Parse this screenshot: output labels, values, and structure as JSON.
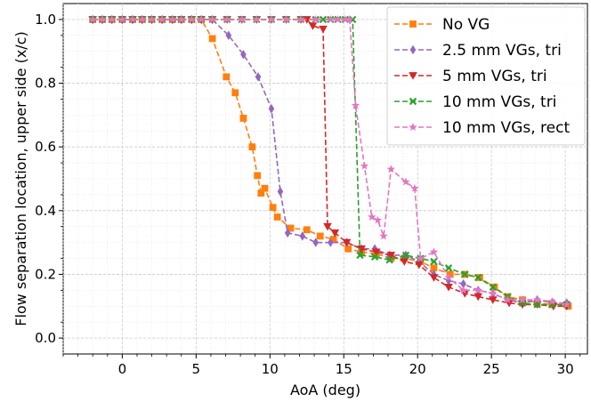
{
  "chart_data": {
    "type": "line",
    "xlabel": "AoA (deg)",
    "ylabel": "Flow separation location, upper side (x/c)",
    "xlim": [
      -4,
      31.5
    ],
    "ylim": [
      -0.05,
      1.05
    ],
    "xticks": [
      0,
      5,
      10,
      15,
      20,
      25,
      30
    ],
    "xtick_labels": [
      "0",
      "5",
      "10",
      "15",
      "20",
      "25",
      "30"
    ],
    "yticks": [
      0.0,
      0.2,
      0.4,
      0.6,
      0.8,
      1.0
    ],
    "ytick_labels": [
      "0.0",
      "0.2",
      "0.4",
      "0.6",
      "0.8",
      "1.0"
    ],
    "grid": true,
    "legend_position": "top-right",
    "series": [
      {
        "name": "No VG",
        "color": "#ff7f0e",
        "marker": "square",
        "x": [
          -2,
          -1.35,
          -0.7,
          0,
          0.7,
          1.35,
          2,
          2.7,
          3.4,
          4,
          4.7,
          5.35,
          6.1,
          7.05,
          7.65,
          8.2,
          8.8,
          9.15,
          9.4,
          9.65,
          10.2,
          10.5,
          11.4,
          12.5,
          13.4,
          14.3,
          15.3,
          16.2,
          17.2,
          18.2,
          19.1,
          20.2,
          21.1,
          22.2,
          23.2,
          24.2,
          25.2,
          26.1,
          27.1,
          28.1,
          29.1,
          30.2
        ],
        "y": [
          1.0,
          1.0,
          1.0,
          1.0,
          1.0,
          1.0,
          1.0,
          1.0,
          1.0,
          1.0,
          1.0,
          1.0,
          0.94,
          0.82,
          0.77,
          0.69,
          0.6,
          0.51,
          0.455,
          0.47,
          0.41,
          0.38,
          0.345,
          0.34,
          0.32,
          0.31,
          0.28,
          0.27,
          0.265,
          0.25,
          0.25,
          0.24,
          0.22,
          0.2,
          0.2,
          0.19,
          0.16,
          0.13,
          0.12,
          0.11,
          0.105,
          0.1
        ]
      },
      {
        "name": "2.5 mm VGs, tri",
        "color": "#9467bd",
        "marker": "thin_diamond",
        "x": [
          -2,
          -1.35,
          -0.7,
          0,
          0.7,
          1.35,
          2,
          2.7,
          3.4,
          4,
          4.7,
          5.35,
          6.1,
          7.2,
          8.2,
          9.2,
          10.1,
          10.7,
          11.2,
          12.2,
          13.1,
          14.1,
          15.2,
          16.2,
          17.1,
          18.1,
          19.2,
          20.1,
          21.1,
          22.1,
          23.1,
          24.1,
          25.1,
          26.1,
          27.1,
          28.1,
          29.2,
          30.1
        ],
        "y": [
          1.0,
          1.0,
          1.0,
          1.0,
          1.0,
          1.0,
          1.0,
          1.0,
          1.0,
          1.0,
          1.0,
          1.0,
          1.0,
          0.95,
          0.89,
          0.82,
          0.72,
          0.46,
          0.33,
          0.32,
          0.3,
          0.3,
          0.3,
          0.28,
          0.28,
          0.26,
          0.26,
          0.24,
          0.2,
          0.18,
          0.17,
          0.15,
          0.14,
          0.12,
          0.11,
          0.12,
          0.11,
          0.11
        ]
      },
      {
        "name": "5 mm VGs, tri",
        "color": "#d62728",
        "marker": "triangle_down",
        "x": [
          -2,
          -1.35,
          -0.7,
          0,
          0.7,
          1.35,
          2,
          2.7,
          3.4,
          4,
          4.7,
          5.35,
          6.1,
          7.1,
          8.1,
          9.1,
          10.1,
          11.1,
          12.1,
          12.5,
          12.9,
          13.6,
          13.9,
          14.4,
          15.2,
          16.2,
          17.2,
          18.2,
          19.1,
          20.1,
          21.1,
          22.1,
          23.2,
          24.1,
          25.1,
          26.2,
          27.1,
          28.1,
          29.2,
          30.1
        ],
        "y": [
          1.0,
          1.0,
          1.0,
          1.0,
          1.0,
          1.0,
          1.0,
          1.0,
          1.0,
          1.0,
          1.0,
          1.0,
          1.0,
          1.0,
          1.0,
          1.0,
          1.0,
          1.0,
          1.0,
          1.0,
          0.98,
          0.97,
          0.35,
          0.33,
          0.3,
          0.28,
          0.27,
          0.26,
          0.24,
          0.23,
          0.19,
          0.16,
          0.14,
          0.13,
          0.12,
          0.11,
          0.105,
          0.105,
          0.1,
          0.1
        ]
      },
      {
        "name": "10 mm VGs, tri",
        "color": "#2ca02c",
        "marker": "x_filled",
        "x": [
          -2,
          -1.35,
          -0.7,
          0,
          0.7,
          1.35,
          2,
          2.7,
          3.4,
          4,
          4.7,
          5.35,
          6.1,
          7.1,
          8.1,
          9.1,
          10.1,
          11.1,
          12.1,
          13.1,
          13.6,
          14.1,
          14.6,
          15.1,
          15.6,
          16.1,
          17.1,
          18.1,
          19.2,
          20.2,
          21.1,
          22.1,
          23.2,
          24.1,
          25.1,
          26.1,
          27.1,
          28.1,
          29.1,
          30.1
        ],
        "y": [
          1.0,
          1.0,
          1.0,
          1.0,
          1.0,
          1.0,
          1.0,
          1.0,
          1.0,
          1.0,
          1.0,
          1.0,
          1.0,
          1.0,
          1.0,
          1.0,
          1.0,
          1.0,
          1.0,
          1.0,
          1.0,
          1.0,
          1.0,
          1.0,
          1.0,
          0.26,
          0.255,
          0.245,
          0.26,
          0.25,
          0.24,
          0.22,
          0.2,
          0.19,
          0.16,
          0.13,
          0.11,
          0.105,
          0.105,
          0.105
        ]
      },
      {
        "name": "10 mm VGs, rect",
        "color": "#e377c2",
        "marker": "star",
        "x": [
          -2,
          -1.35,
          -0.7,
          0,
          0.7,
          1.35,
          2,
          2.7,
          3.4,
          4,
          4.7,
          5.35,
          6.1,
          7.1,
          8.1,
          9.1,
          10.1,
          11.1,
          12.1,
          13.1,
          14.1,
          14.6,
          15.1,
          15.4,
          15.8,
          16.4,
          16.9,
          17.3,
          17.7,
          18.2,
          19.2,
          19.8,
          20.2,
          21.1,
          22.1,
          23.1,
          24.1,
          25.1,
          26.1,
          27.1,
          28.1,
          29.1,
          30.1
        ],
        "y": [
          1.0,
          1.0,
          1.0,
          1.0,
          1.0,
          1.0,
          1.0,
          1.0,
          1.0,
          1.0,
          1.0,
          1.0,
          1.0,
          1.0,
          1.0,
          1.0,
          1.0,
          1.0,
          1.0,
          1.0,
          1.0,
          1.0,
          1.0,
          1.0,
          0.73,
          0.54,
          0.38,
          0.37,
          0.32,
          0.53,
          0.49,
          0.47,
          0.25,
          0.27,
          0.19,
          0.15,
          0.15,
          0.14,
          0.12,
          0.12,
          0.12,
          0.115,
          0.105
        ]
      }
    ]
  }
}
